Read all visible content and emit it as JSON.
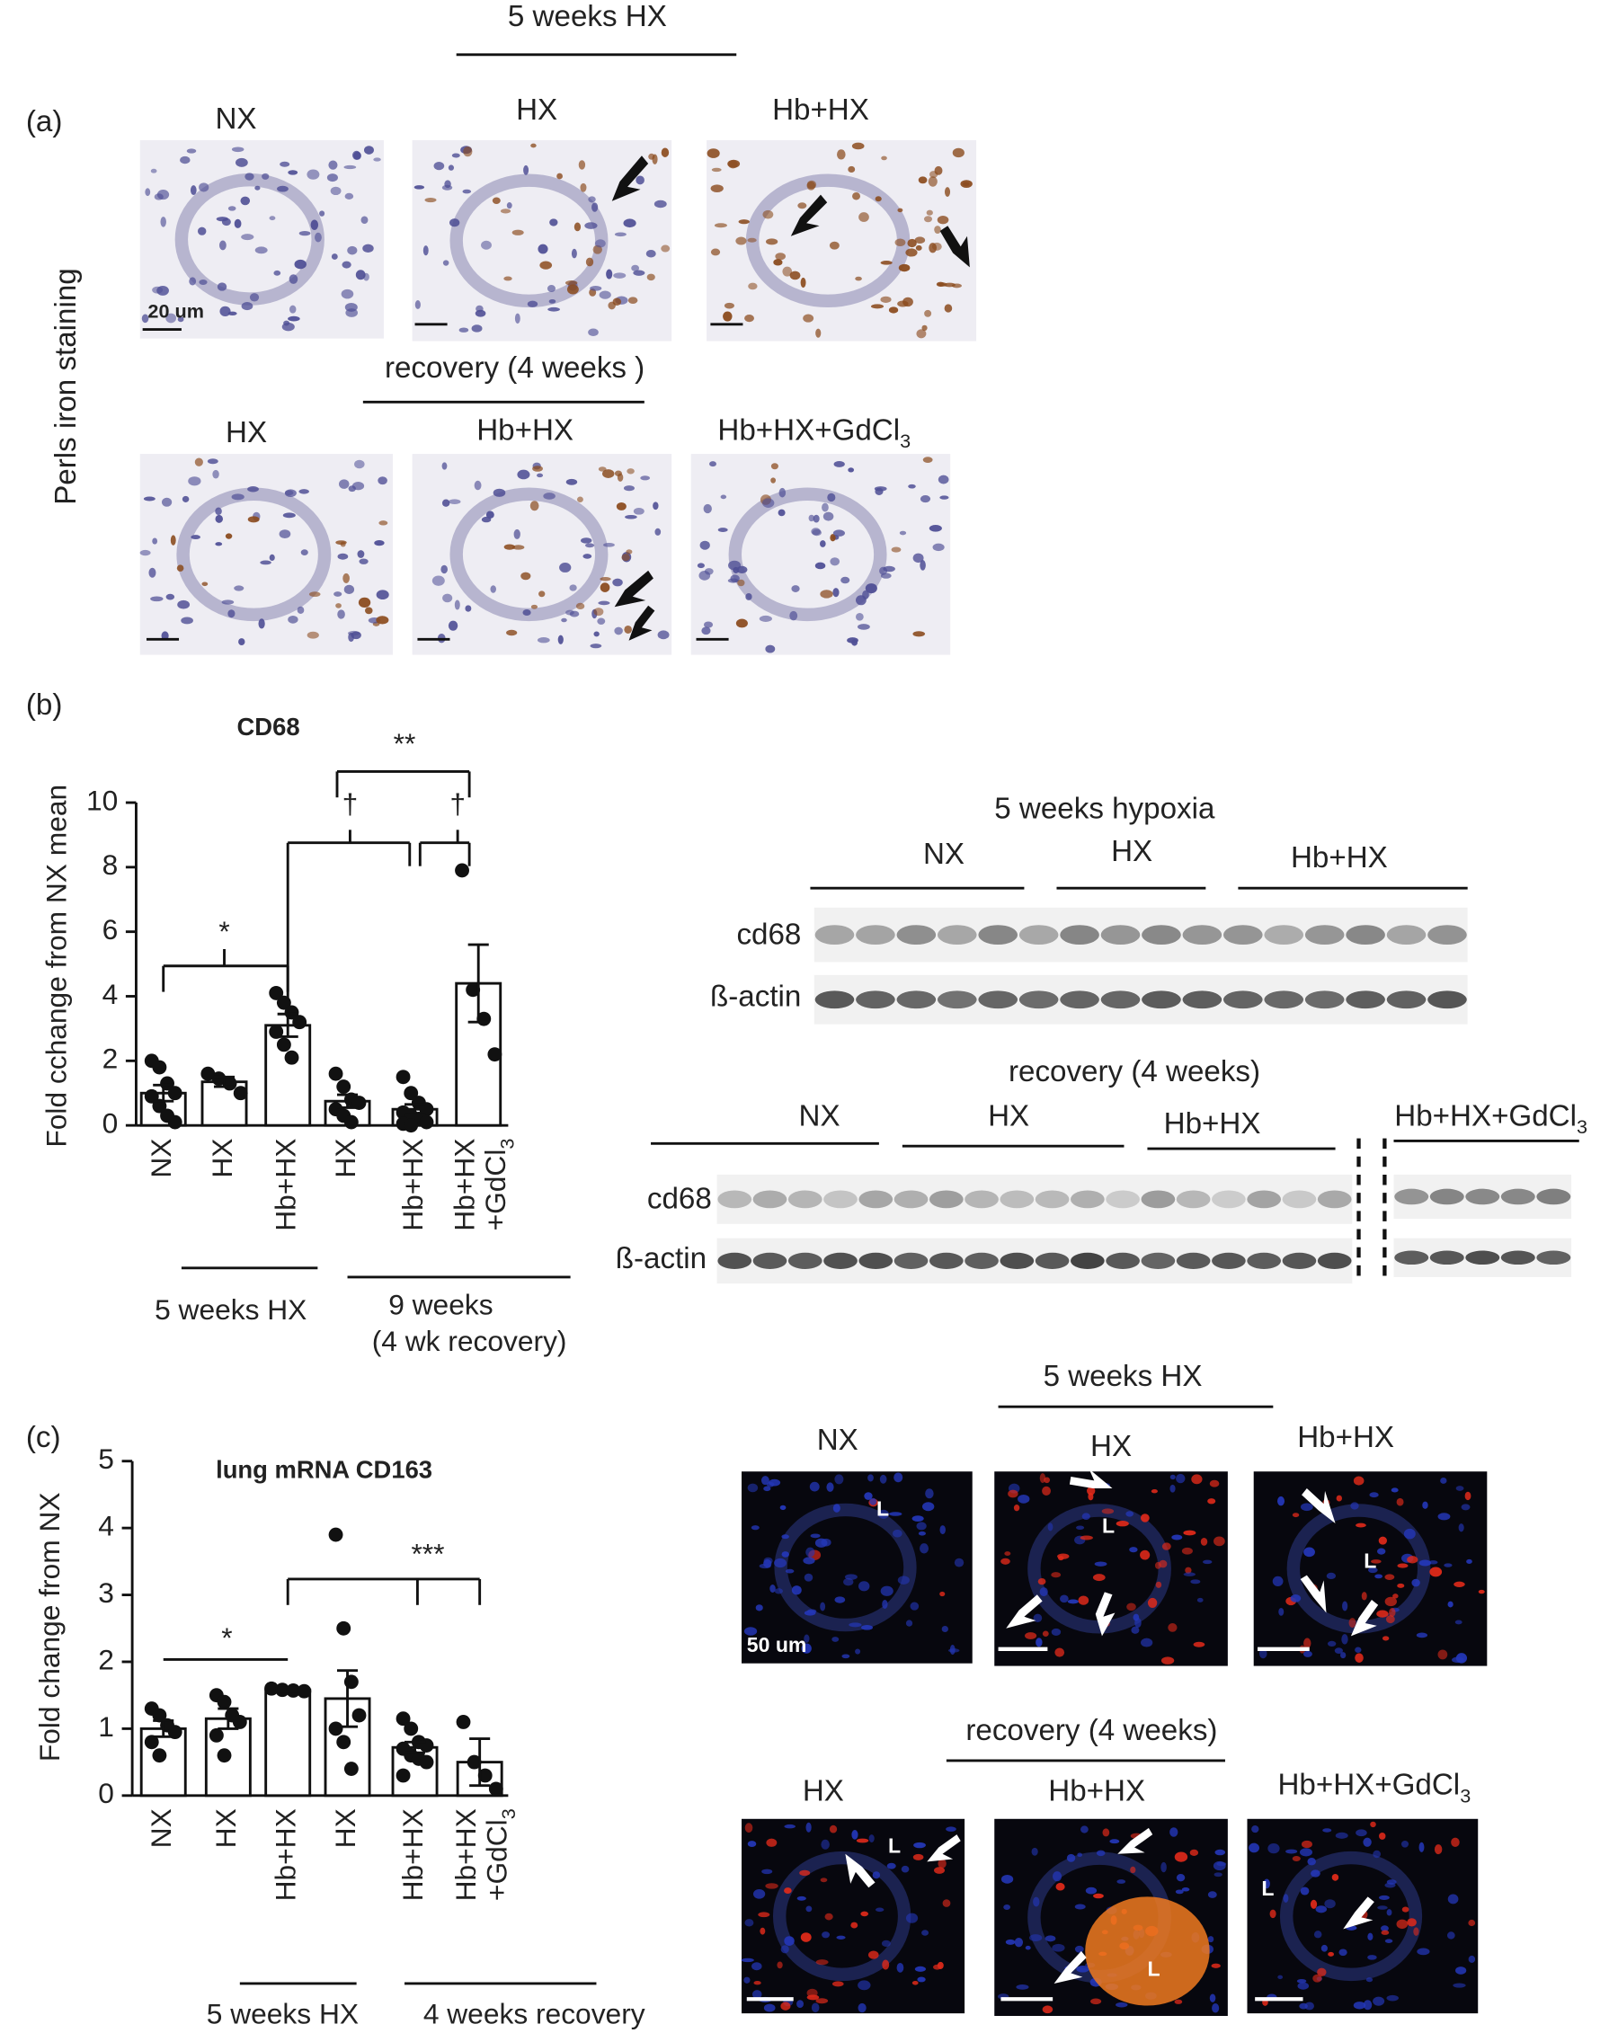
{
  "panel_a": {
    "label": "(a)",
    "group_top": "5 weeks HX",
    "row1_labels": [
      "NX",
      "HX",
      "Hb+HX"
    ],
    "y_label": "Perls iron staining",
    "scale_bar": "20 um",
    "group_bottom": "recovery (4 weeks )",
    "row2_labels": [
      "HX",
      "Hb+HX",
      "Hb+HX+GdCl"
    ],
    "subscript": "3"
  },
  "panel_b": {
    "label": "(b)",
    "blot_title": "5 weeks hypoxia",
    "blot_groups": [
      "NX",
      "HX",
      "Hb+HX"
    ],
    "bands": [
      "cd68",
      "ß-actin"
    ],
    "recovery_title": "recovery (4 weeks)",
    "recovery_groups": [
      "NX",
      "HX",
      "Hb+HX",
      "Hb+HX+GdCl"
    ],
    "subscript": "3"
  },
  "panel_c": {
    "label": "(c)",
    "group_top": "5 weeks HX",
    "row1_labels": [
      "NX",
      "HX",
      "Hb+HX"
    ],
    "scale_bar": "50 um",
    "lumen": "L",
    "group_bottom": "recovery (4 weeks)",
    "row2_labels": [
      "HX",
      "Hb+HX",
      "Hb+HX+GdCl"
    ],
    "subscript": "3"
  },
  "chart_data": [
    {
      "type": "bar",
      "title": "CD68",
      "y_label": "Fold cchange from NX mean",
      "categories": [
        "NX",
        "HX",
        "Hb+HX",
        "HX",
        "Hb+HX",
        "Hb+HX"
      ],
      "last_category_suffix": "+GdCl",
      "last_category_subscript": "3",
      "values": [
        1.0,
        1.35,
        3.1,
        0.75,
        0.5,
        4.4
      ],
      "errors": [
        0.25,
        0.15,
        0.35,
        0.2,
        0.15,
        1.2
      ],
      "points": [
        [
          2.0,
          1.8,
          1.3,
          1.0,
          0.9,
          0.6,
          0.3,
          0.1
        ],
        [
          1.6,
          1.45,
          1.3,
          1.0
        ],
        [
          4.1,
          3.8,
          3.5,
          3.2,
          2.9,
          2.5,
          2.1
        ],
        [
          1.6,
          1.2,
          0.8,
          0.7,
          0.5,
          0.3,
          0.1
        ],
        [
          1.5,
          1.0,
          0.7,
          0.5,
          0.4,
          0.3,
          0.2,
          0.1,
          0.05,
          0.0
        ],
        [
          7.9,
          4.2,
          3.3,
          2.2
        ]
      ],
      "color": "#ffffff",
      "point_color": "#111111",
      "ylim": [
        0,
        10
      ],
      "yticks": [
        0,
        2,
        4,
        6,
        8,
        10
      ],
      "group_labels": [
        "5 weeks HX",
        "9 weeks",
        "(4  wk recovery)"
      ],
      "significance": [
        "*",
        "**",
        "†",
        "†"
      ]
    },
    {
      "type": "bar",
      "title": "lung mRNA CD163",
      "y_label": "Fold change from NX",
      "categories": [
        "NX",
        "HX",
        "Hb+HX",
        "HX",
        "Hb+HX",
        "Hb+HX"
      ],
      "last_category_suffix": "+GdCl",
      "last_category_subscript": "3",
      "values": [
        1.0,
        1.15,
        1.58,
        1.45,
        0.72,
        0.5
      ],
      "errors": [
        0.12,
        0.15,
        0.03,
        0.42,
        0.08,
        0.35
      ],
      "points": [
        [
          1.3,
          1.2,
          1.05,
          0.95,
          0.8,
          0.6
        ],
        [
          1.5,
          1.4,
          1.2,
          1.1,
          0.9,
          0.6
        ],
        [
          1.6,
          1.58,
          1.57,
          1.56
        ],
        [
          3.9,
          2.5,
          1.7,
          1.2,
          1.0,
          0.8,
          0.4
        ],
        [
          1.15,
          1.0,
          0.8,
          0.75,
          0.7,
          0.6,
          0.55,
          0.5,
          0.3
        ],
        [
          1.1,
          0.5,
          0.3,
          0.1
        ]
      ],
      "color": "#ffffff",
      "point_color": "#111111",
      "ylim": [
        0,
        5
      ],
      "yticks": [
        0,
        1,
        2,
        3,
        4,
        5
      ],
      "group_labels": [
        "5 weeks HX",
        "4 weeks recovery"
      ],
      "significance": [
        "*",
        "***"
      ]
    }
  ]
}
